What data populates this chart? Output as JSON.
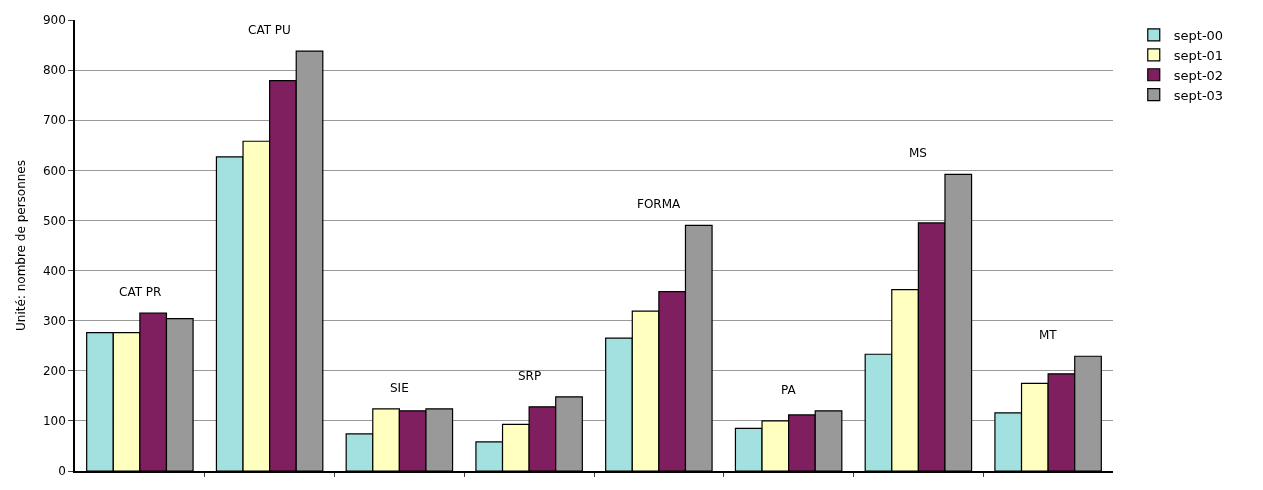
{
  "chart_data": {
    "type": "bar",
    "ylabel": "Unité: nombre de personnes",
    "categories": [
      "CAT PR",
      "CAT PU",
      "SIE",
      "SRP",
      "FORMA",
      "PA",
      "MS",
      "MT"
    ],
    "series": [
      {
        "name": "sept-00",
        "color": "#a3e0e0",
        "values": [
          276,
          627,
          74,
          58,
          265,
          85,
          233,
          116
        ]
      },
      {
        "name": "sept-01",
        "color": "#ffffc0",
        "values": [
          276,
          658,
          124,
          93,
          319,
          100,
          362,
          175
        ]
      },
      {
        "name": "sept-02",
        "color": "#801f5f",
        "values": [
          315,
          779,
          120,
          128,
          358,
          112,
          495,
          194
        ]
      },
      {
        "name": "sept-03",
        "color": "#999999",
        "values": [
          304,
          838,
          124,
          148,
          490,
          120,
          592,
          229
        ]
      }
    ],
    "ylim": [
      0,
      900
    ],
    "yticks": [
      0,
      100,
      200,
      300,
      400,
      500,
      600,
      700,
      800,
      900
    ],
    "grid": "y",
    "legend": "top right",
    "tick_labels": "y"
  }
}
